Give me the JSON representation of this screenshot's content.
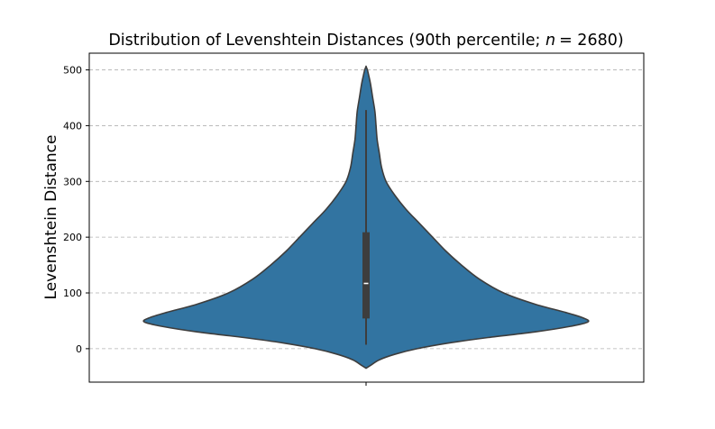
{
  "chart_data": {
    "type": "violin",
    "title": "Distribution of Levenshtein Distances (90th percentile; n = 2680)",
    "title_parts": {
      "prefix": "Distribution of Levenshtein Distances (90th percentile; ",
      "n_symbol": "n",
      "n_value": "= 2680)"
    },
    "ylabel": "Levenshtein Distance",
    "xlabel": "",
    "ylim": [
      -60,
      530
    ],
    "yticks": [
      0,
      100,
      200,
      300,
      400,
      500
    ],
    "grid": "y-dashed",
    "fill_color": "#3274a1",
    "line_color": "#3d3d3d",
    "median_color": "#ffffff",
    "density_profile": [
      {
        "y": -35,
        "w": 0.0
      },
      {
        "y": -30,
        "w": 0.02
      },
      {
        "y": -20,
        "w": 0.06
      },
      {
        "y": -10,
        "w": 0.13
      },
      {
        "y": 0,
        "w": 0.23
      },
      {
        "y": 10,
        "w": 0.37
      },
      {
        "y": 20,
        "w": 0.55
      },
      {
        "y": 30,
        "w": 0.76
      },
      {
        "y": 40,
        "w": 0.92
      },
      {
        "y": 48,
        "w": 1.0
      },
      {
        "y": 55,
        "w": 0.98
      },
      {
        "y": 65,
        "w": 0.9
      },
      {
        "y": 80,
        "w": 0.76
      },
      {
        "y": 100,
        "w": 0.62
      },
      {
        "y": 125,
        "w": 0.51
      },
      {
        "y": 150,
        "w": 0.43
      },
      {
        "y": 175,
        "w": 0.36
      },
      {
        "y": 200,
        "w": 0.3
      },
      {
        "y": 225,
        "w": 0.24
      },
      {
        "y": 250,
        "w": 0.18
      },
      {
        "y": 275,
        "w": 0.13
      },
      {
        "y": 300,
        "w": 0.09
      },
      {
        "y": 325,
        "w": 0.07
      },
      {
        "y": 350,
        "w": 0.06
      },
      {
        "y": 375,
        "w": 0.05
      },
      {
        "y": 400,
        "w": 0.045
      },
      {
        "y": 425,
        "w": 0.04
      },
      {
        "y": 450,
        "w": 0.03
      },
      {
        "y": 475,
        "w": 0.02
      },
      {
        "y": 490,
        "w": 0.012
      },
      {
        "y": 500,
        "w": 0.006
      },
      {
        "y": 506,
        "w": 0.0
      }
    ],
    "box": {
      "whisker_low": 7,
      "q1": 55,
      "median": 117,
      "q3": 208,
      "whisker_high": 428
    }
  }
}
